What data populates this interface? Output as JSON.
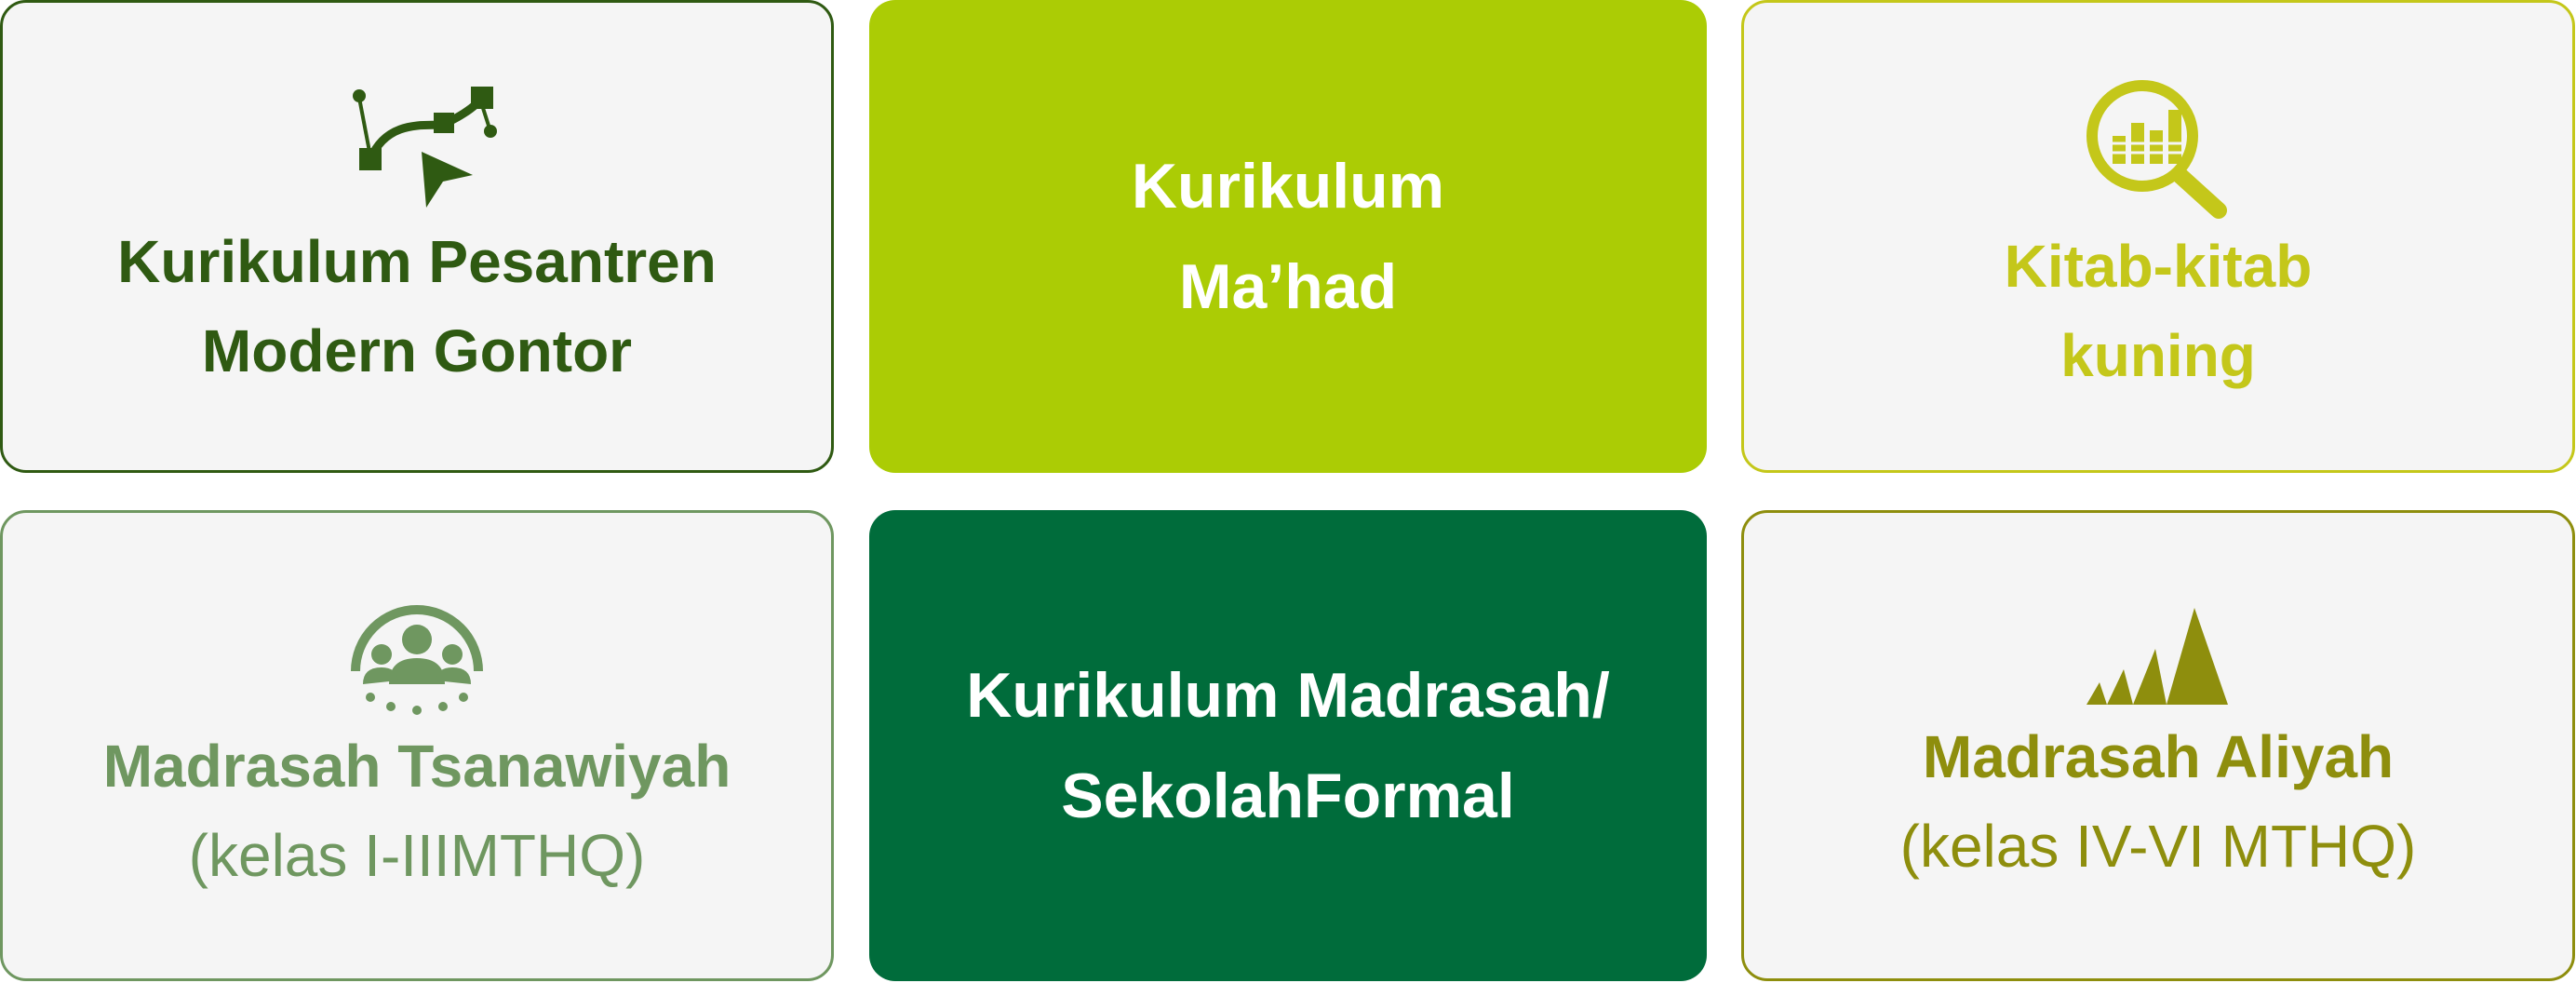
{
  "cards": [
    {
      "icon": "bezier-pen-icon",
      "line1": "Kurikulum Pesantren",
      "line2": "Modern Gontor",
      "color": "#2f5a12"
    },
    {
      "line1": "Kurikulum",
      "line2": "Ma’had",
      "color": "#abcc05"
    },
    {
      "icon": "magnify-chart-icon",
      "line1": "Kitab-kitab",
      "line2": "kuning",
      "color": "#c4c71a"
    },
    {
      "icon": "group-users-icon",
      "line1": "Madrasah Tsanawiyah",
      "line2": "(kelas I-IIIMTHQ)",
      "color": "#6f9760"
    },
    {
      "line1": "Kurikulum Madrasah/",
      "line2": "SekolahFormal",
      "color": "#006c3b"
    },
    {
      "icon": "rising-peaks-icon",
      "line1": "Madrasah Aliyah",
      "line2": "(kelas IV-VI MTHQ)",
      "color": "#8e8e0d"
    }
  ]
}
